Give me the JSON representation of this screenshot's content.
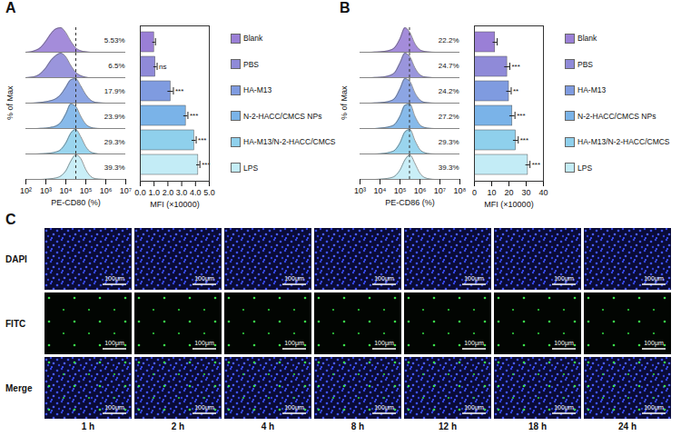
{
  "chart_data": [
    {
      "panel": "A",
      "type": "ridgeline",
      "x_label": "PE-CD80 (%)",
      "y_label": "% of Max",
      "log": "x",
      "tick_labels": "x",
      "xlim": [
        100,
        10000000
      ],
      "xticks": [
        {
          "value": 100,
          "label": "10²"
        },
        {
          "value": 1000,
          "label": "10³"
        },
        {
          "value": 10000,
          "label": "10⁴"
        },
        {
          "value": 100000,
          "label": "10⁵"
        },
        {
          "value": 1000000,
          "label": "10⁶"
        },
        {
          "value": 10000000,
          "label": "10⁷"
        }
      ],
      "gate": 31623,
      "x": [
        100,
        178,
        316,
        562,
        1000,
        1778,
        3162,
        5623,
        10000,
        17783,
        31623,
        56234,
        100000,
        177828,
        316228,
        562341,
        1000000,
        1778279,
        3162278,
        5623413,
        10000000
      ],
      "series": [
        {
          "name": "Blank",
          "color": "#9a7fd6",
          "gated_percent": 5.53,
          "gated_percent_label": "5.53%",
          "values": [
            0,
            2,
            8,
            20,
            45,
            75,
            95,
            100,
            80,
            45,
            18,
            6,
            2,
            0,
            0,
            0,
            0,
            0,
            0,
            0,
            0
          ]
        },
        {
          "name": "PBS",
          "color": "#8f8ad8",
          "gated_percent": 6.5,
          "gated_percent_label": "6.5%",
          "values": [
            0,
            2,
            6,
            18,
            40,
            70,
            90,
            100,
            85,
            50,
            22,
            8,
            2,
            0,
            0,
            0,
            0,
            0,
            0,
            0,
            0
          ]
        },
        {
          "name": "HA-M13",
          "color": "#7f9be0",
          "gated_percent": 17.9,
          "gated_percent_label": "17.9%",
          "values": [
            0,
            0,
            1,
            3,
            6,
            10,
            18,
            35,
            65,
            95,
            100,
            70,
            35,
            12,
            3,
            1,
            0,
            0,
            0,
            0,
            0
          ]
        },
        {
          "name": "N-2-HACC/CMCS NPs",
          "color": "#7ab3e8",
          "gated_percent": 23.9,
          "gated_percent_label": "23.9%",
          "values": [
            0,
            0,
            0,
            1,
            2,
            5,
            10,
            25,
            60,
            100,
            90,
            50,
            18,
            5,
            1,
            0,
            0,
            0,
            0,
            0,
            0
          ]
        },
        {
          "name": "HA-M13/N-2-HACC/CMCS",
          "color": "#8fd0ec",
          "gated_percent": 29.3,
          "gated_percent_label": "29.3%",
          "values": [
            0,
            0,
            0,
            1,
            2,
            4,
            8,
            18,
            45,
            85,
            100,
            70,
            30,
            8,
            2,
            0,
            0,
            0,
            0,
            0,
            0
          ]
        },
        {
          "name": "LPS",
          "color": "#c3ecf6",
          "gated_percent": 39.3,
          "gated_percent_label": "39.3%",
          "values": [
            0,
            0,
            0,
            0,
            1,
            3,
            6,
            14,
            35,
            75,
            100,
            85,
            40,
            12,
            3,
            1,
            0,
            0,
            0,
            0,
            0
          ]
        }
      ]
    },
    {
      "type": "bar",
      "orientation": "horizontal",
      "x_label": "MFI (×10000)",
      "legend": "right",
      "tick_labels": "x",
      "xlim": [
        0,
        5
      ],
      "xticks": [
        0,
        1,
        2,
        3,
        4,
        5
      ],
      "categories": [
        "Blank",
        "PBS",
        "HA-M13",
        "N-2-HACC/CMCS NPs",
        "HA-M13/N-2-HACC/CMCS",
        "LPS"
      ],
      "values": [
        1.0,
        1.1,
        2.2,
        3.3,
        3.9,
        4.2
      ],
      "errors": [
        0.1,
        0.12,
        0.2,
        0.15,
        0.15,
        0.12
      ],
      "significance": [
        null,
        "ns",
        "***",
        "***",
        "***",
        "***"
      ],
      "colors": [
        "#9a7fd6",
        "#8f8ad8",
        "#7f9be0",
        "#7ab3e8",
        "#8fd0ec",
        "#c3ecf6"
      ]
    },
    {
      "panel": "B",
      "type": "ridgeline",
      "x_label": "PE-CD86 (%)",
      "y_label": "% of Max",
      "log": "x",
      "tick_labels": "x",
      "xlim": [
        1000,
        100000000
      ],
      "xticks": [
        {
          "value": 1000,
          "label": "10³"
        },
        {
          "value": 10000,
          "label": "10⁴"
        },
        {
          "value": 100000,
          "label": "10⁵"
        },
        {
          "value": 1000000,
          "label": "10⁶"
        },
        {
          "value": 10000000,
          "label": "10⁷"
        },
        {
          "value": 100000000,
          "label": "10⁸"
        }
      ],
      "gate": 300000,
      "x": [
        1000,
        1778,
        3162,
        5623,
        10000,
        17783,
        31623,
        56234,
        100000,
        177828,
        316228,
        562341,
        1000000,
        1778279,
        3162278,
        5623413,
        10000000,
        17782794,
        31622777,
        56234133,
        100000000
      ],
      "series": [
        {
          "name": "Blank",
          "color": "#9a7fd6",
          "gated_percent": 22.2,
          "gated_percent_label": "22.2%",
          "values": [
            0,
            0,
            0,
            1,
            2,
            4,
            8,
            20,
            55,
            100,
            80,
            35,
            10,
            3,
            1,
            0,
            0,
            0,
            0,
            0,
            0
          ]
        },
        {
          "name": "PBS",
          "color": "#8f8ad8",
          "gated_percent": 24.7,
          "gated_percent_label": "24.7%",
          "values": [
            0,
            0,
            0,
            1,
            2,
            4,
            9,
            22,
            60,
            100,
            85,
            40,
            12,
            3,
            1,
            0,
            0,
            0,
            0,
            0,
            0
          ]
        },
        {
          "name": "HA-M13",
          "color": "#7f9be0",
          "gated_percent": 24.2,
          "gated_percent_label": "24.2%",
          "values": [
            0,
            0,
            0,
            1,
            2,
            4,
            8,
            20,
            58,
            100,
            88,
            42,
            13,
            3,
            1,
            0,
            0,
            0,
            0,
            0,
            0
          ]
        },
        {
          "name": "N-2-HACC/CMCS NPs",
          "color": "#7ab3e8",
          "gated_percent": 27.2,
          "gated_percent_label": "27.2%",
          "values": [
            0,
            0,
            0,
            0,
            2,
            4,
            8,
            18,
            50,
            95,
            100,
            50,
            15,
            4,
            1,
            0,
            0,
            0,
            0,
            0,
            0
          ]
        },
        {
          "name": "HA-M13/N-2-HACC/CMCS",
          "color": "#8fd0ec",
          "gated_percent": 29.3,
          "gated_percent_label": "29.3%",
          "values": [
            0,
            0,
            0,
            0,
            1,
            3,
            7,
            16,
            45,
            90,
            100,
            55,
            18,
            5,
            1,
            0,
            0,
            0,
            0,
            0,
            0
          ]
        },
        {
          "name": "LPS",
          "color": "#c3ecf6",
          "gated_percent": 39.3,
          "gated_percent_label": "39.3%",
          "values": [
            0,
            0,
            0,
            0,
            1,
            3,
            6,
            14,
            38,
            80,
            100,
            65,
            25,
            7,
            2,
            0,
            0,
            0,
            0,
            0,
            0
          ]
        }
      ]
    },
    {
      "type": "bar",
      "orientation": "horizontal",
      "x_label": "MFI (×10000)",
      "legend": "right",
      "tick_labels": "x",
      "xlim": [
        0,
        40
      ],
      "xticks": [
        0,
        10,
        20,
        30,
        40
      ],
      "categories": [
        "Blank",
        "PBS",
        "HA-M13",
        "N-2-HACC/CMCS NPs",
        "HA-M13/N-2-HACC/CMCS",
        "LPS"
      ],
      "values": [
        12,
        19,
        20,
        22,
        24,
        31
      ],
      "errors": [
        1.2,
        1.5,
        1.3,
        1.5,
        1.4,
        1.2
      ],
      "significance": [
        null,
        "***",
        "**",
        "***",
        "***",
        "***"
      ],
      "colors": [
        "#9a7fd6",
        "#8f8ad8",
        "#7f9be0",
        "#7ab3e8",
        "#8fd0ec",
        "#c3ecf6"
      ]
    }
  ],
  "image_grid": {
    "panel": "C",
    "rows": [
      "DAPI",
      "FITC",
      "Merge"
    ],
    "columns": [
      "1 h",
      "2 h",
      "4 h",
      "8 h",
      "12 h",
      "18 h",
      "24 h"
    ],
    "scale_bar": "100μm"
  }
}
